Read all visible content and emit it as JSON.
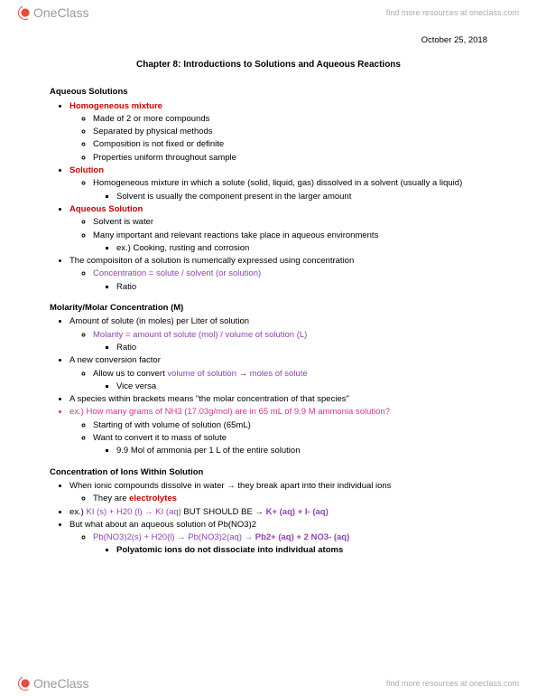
{
  "header": {
    "logo_text": "OneClass",
    "tagline": "find more resources at oneclass.com"
  },
  "date": "October 25, 2018",
  "title": "Chapter 8: Introductions to Solutions and Aqueous Reactions",
  "sections": {
    "aq": {
      "heading": "Aqueous Solutions",
      "hm": {
        "label": "Homogeneous mixture",
        "b1": "Made of 2 or more compounds",
        "b2": "Separated by physical methods",
        "b3": "Composition is not fixed or definite",
        "b4": "Properties uniform throughout sample"
      },
      "sol": {
        "label": "Solution",
        "b1": "Homogeneous mixture in which a solute (solid, liquid, gas) dissolved in a solvent (usually a liquid)",
        "b2": "Solvent is usually the component present in the larger amount"
      },
      "aqs": {
        "label": "Aqueous Solution",
        "b1": "Solvent is water",
        "b2": "Many important and relevant reactions take place in aqueous environments",
        "b3": "ex.) Cooking, rusting and corrosion"
      },
      "comp": {
        "b1": "The compoisiton of a solution is numerically expressed using concentration",
        "formula": "Concentration = solute / solvent (or solution)",
        "ratio": "Ratio"
      }
    },
    "mol": {
      "heading": "Molarity/Molar Concentration (M)",
      "b1": "Amount of solute (in moles) per Liter of solution",
      "formula": "Molarity = amount of solute (mol) / volume of solution (L)",
      "ratio": "Ratio",
      "b2": "A new conversion factor",
      "b2a_pre": "Allow us to convert ",
      "b2a_p1": "volume of solution",
      "b2a_arrow": " → ",
      "b2a_p2": "moles of solute",
      "b2b": "Vice versa",
      "b3": "A species within brackets means \"the molar concentration of that species\"",
      "ex": "ex.) How many grams of NH3 (17.03g/mol) are in 65 mL of 9.9 M ammonia solution?",
      "ex_a": "Starting of with volume of solution (65mL)",
      "ex_b": "Want to convert it to mass of solute",
      "ex_c": "9.9 Mol of ammonia per 1 L of the entire solution"
    },
    "ions": {
      "heading": "Concentration of Ions Within Solution",
      "b1": "When ionic compounds dissolve in water → they break apart into their individual ions",
      "b1a_pre": "They are ",
      "b1a_term": "electrolytes",
      "ex1_pre": "ex.) ",
      "ex1_p1": "KI (s) + H20 (l) → KI (aq)",
      "ex1_mid": " BUT SHOULD BE → ",
      "ex1_p2": "K+ (aq) + I- (aq)",
      "b2": "But what about an aqueous solution of Pb(NO3)2",
      "b2a_p1": "Pb(NO3)2(s) + H20(l) → Pb(NO3)2(aq) → ",
      "b2a_p2": "Pb2+ (aq) + 2 NO3- (aq)",
      "b2b": "Polyatomic ions do not dissociate into individual atoms"
    }
  },
  "footer": {
    "logo_text": "OneClass",
    "tagline": "find more resources at oneclass.com"
  }
}
